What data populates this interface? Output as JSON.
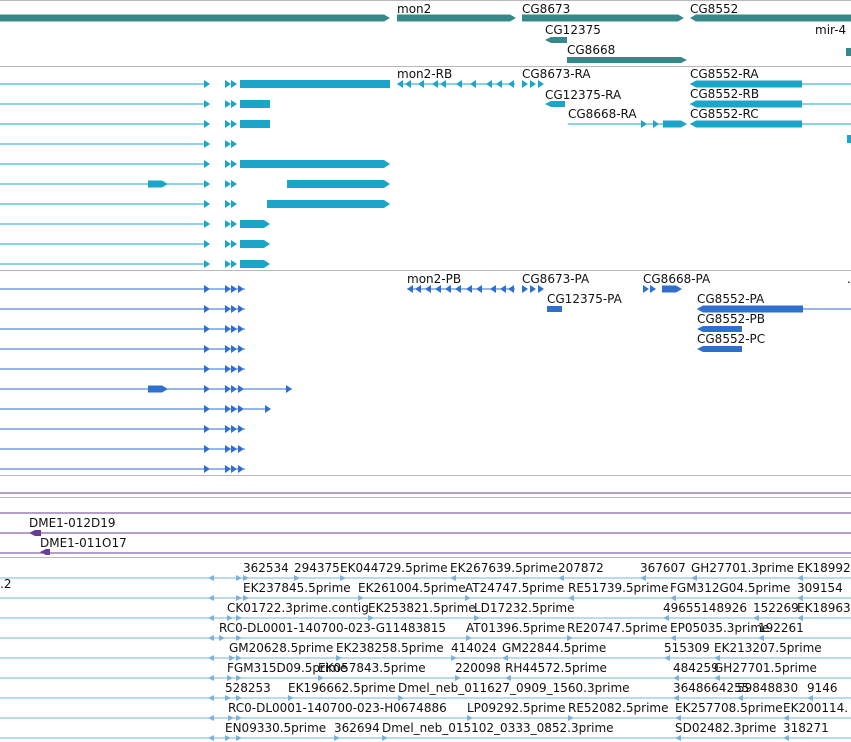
{
  "colors": {
    "gene": "#37888a",
    "mrna": "#1ba5c8",
    "protein": "#2f6fd0",
    "bac": "#6a3d9a",
    "est": "#77b4dd",
    "separator": "#b8b8b8",
    "text": "#111111"
  },
  "tracks": {
    "genes": [
      "mon2",
      "CG8673",
      "CG12375",
      "CG8668",
      "CG8552",
      "mir-4"
    ],
    "transcripts": [
      "mon2-RB",
      "CG8673-RA",
      "CG12375-RA",
      "CG8668-RA",
      "CG8552-RA",
      "CG8552-RB",
      "CG8552-RC"
    ],
    "proteins": [
      "mon2-PB",
      "CG8673-PA",
      "CG12375-PA",
      "CG8668-PA",
      "CG8552-PA",
      "CG8552-PB",
      "CG8552-PC"
    ],
    "bac": [
      "DME1-012D19",
      "DME1-011O17"
    ],
    "est_left_edge": ".2",
    "est": [
      [
        "362534",
        "294375",
        "EK044729.5prime",
        "EK267639.5prime",
        "207872",
        "367607",
        "GH27701.3prime",
        "EK18992"
      ],
      [
        "EK237845.5prime",
        "EK261004.5prime",
        "AT24747.5prime",
        "RE51739.5prime",
        "FGM312G04.5prime",
        "309154"
      ],
      [
        "CK01722.3prime.contig",
        "EK253821.5prime",
        "LD17232.5prime",
        "49655148926",
        "152269",
        "EK18963"
      ],
      [
        "RC0-DL0001-140700-023-G11483815",
        "AT01396.5prime",
        "RE20747.5prime",
        "EP05035.3prime",
        "192261"
      ],
      [
        "GM20628.5prime",
        "EK238258.5prime",
        "414024",
        "GM22844.5prime",
        "515309",
        "EK213207.5prime"
      ],
      [
        "FGM315D09.5prime",
        "EK057843.5prime",
        "220098",
        "RH44572.5prime",
        "484259",
        "GH27701.5prime"
      ],
      [
        "528253",
        "EK196662.5prime",
        "Dmel_neb_011627_0909_1560.3prime",
        "3648664255",
        "59848830",
        "9146"
      ],
      [
        "RC0-DL0001-140700-023-H0674886",
        "LP09292.5prime",
        "RE52082.5prime",
        "EK257708.5prime",
        "EK200114."
      ],
      [
        "EN09330.5prime",
        "362694",
        "Dmel_neb_015102_0333_0852.3prime",
        "SD02482.3prime",
        "318271"
      ]
    ]
  }
}
